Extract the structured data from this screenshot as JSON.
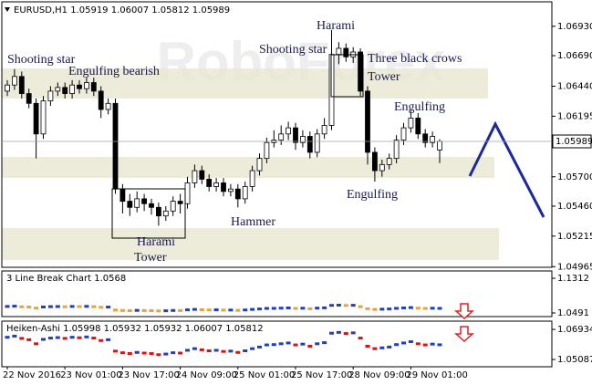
{
  "chart_data": {
    "type": "candlestick",
    "title": "EURUSD,H1 1.05919 1.06007 1.05812 1.05989",
    "watermark": "RoboForex",
    "categories": [
      "22 Nov 2016",
      null,
      null,
      null,
      null,
      null,
      null,
      null,
      "23 Nov 01:00",
      null,
      null,
      null,
      null,
      null,
      null,
      null,
      "23 Nov 17:00",
      null,
      null,
      null,
      null,
      null,
      null,
      null,
      "24 Nov 09:00",
      null,
      null,
      null,
      null,
      null,
      null,
      null,
      "25 Nov 01:00",
      null,
      null,
      null,
      null,
      null,
      null,
      null,
      "25 Nov 17:00",
      null,
      null,
      null,
      null,
      null,
      null,
      null,
      "28 Nov 09:00",
      null,
      null,
      null,
      null,
      null,
      null,
      null,
      "29 Nov 01:00",
      null,
      null,
      null,
      null
    ],
    "open": [
      1.064,
      1.0645,
      1.0652,
      1.0638,
      1.063,
      1.0605,
      1.0632,
      1.064,
      1.0643,
      1.0638,
      1.0645,
      1.0642,
      1.0647,
      1.064,
      1.0625,
      1.063,
      1.056,
      1.055,
      1.0545,
      1.0552,
      1.0548,
      1.0545,
      1.0538,
      1.0542,
      1.055,
      1.0548,
      1.0565,
      1.0575,
      1.0568,
      1.0562,
      1.0565,
      1.0558,
      1.056,
      1.0552,
      1.0562,
      1.0575,
      1.0585,
      1.0598,
      1.06,
      1.0605,
      1.061,
      1.0598,
      1.0603,
      1.059,
      1.0605,
      1.0612,
      1.067,
      1.0675,
      1.0668,
      1.0672,
      1.064,
      1.059,
      1.0575,
      1.058,
      1.0585,
      1.06,
      1.061,
      1.0618,
      1.0605,
      1.0598,
      1.05919
    ],
    "high": [
      1.0649,
      1.0658,
      1.0656,
      1.0642,
      1.0634,
      1.0636,
      1.0644,
      1.0647,
      1.0647,
      1.0649,
      1.0649,
      1.0651,
      1.0651,
      1.0644,
      1.0634,
      1.0634,
      1.0564,
      1.0556,
      1.0558,
      1.0556,
      1.0552,
      1.0549,
      1.0546,
      1.0554,
      1.0556,
      1.057,
      1.058,
      1.0579,
      1.0572,
      1.0569,
      1.0569,
      1.0564,
      1.0564,
      1.0566,
      1.0579,
      1.0589,
      1.0602,
      1.0608,
      1.0612,
      1.0615,
      1.0614,
      1.0608,
      1.0607,
      1.0609,
      1.0618,
      1.069,
      1.068,
      1.0679,
      1.0676,
      1.0675,
      1.0644,
      1.0594,
      1.0584,
      1.0589,
      1.0604,
      1.0614,
      1.0624,
      1.0622,
      1.0609,
      1.0607,
      1.06007
    ],
    "low": [
      1.0636,
      1.0641,
      1.0634,
      1.0626,
      1.0585,
      1.0601,
      1.0628,
      1.0636,
      1.0634,
      1.0634,
      1.0638,
      1.0638,
      1.0636,
      1.0618,
      1.0621,
      1.0556,
      1.054,
      1.0538,
      1.0541,
      1.0542,
      1.0539,
      1.053,
      1.0534,
      1.0538,
      1.054,
      1.0544,
      1.0561,
      1.0564,
      1.0558,
      1.0558,
      1.0554,
      1.0554,
      1.0545,
      1.0548,
      1.0558,
      1.0571,
      1.0581,
      1.0594,
      1.0596,
      1.06,
      1.0592,
      1.0594,
      1.0585,
      1.0586,
      1.0601,
      1.0608,
      1.0662,
      1.0664,
      1.0663,
      1.0636,
      1.058,
      1.0566,
      1.057,
      1.0576,
      1.0581,
      1.0596,
      1.0606,
      1.0601,
      1.0594,
      1.0594,
      1.05812
    ],
    "close": [
      1.0645,
      1.0652,
      1.0638,
      1.063,
      1.0605,
      1.0632,
      1.064,
      1.0643,
      1.0638,
      1.0645,
      1.0642,
      1.0647,
      1.064,
      1.0625,
      1.063,
      1.056,
      1.055,
      1.0545,
      1.0552,
      1.0548,
      1.0545,
      1.0538,
      1.0542,
      1.055,
      1.0548,
      1.0565,
      1.0575,
      1.0568,
      1.0562,
      1.0565,
      1.0558,
      1.056,
      1.0552,
      1.0562,
      1.0575,
      1.0585,
      1.0598,
      1.06,
      1.0605,
      1.061,
      1.0598,
      1.0603,
      1.059,
      1.0605,
      1.0612,
      1.067,
      1.0675,
      1.0668,
      1.0672,
      1.064,
      1.059,
      1.0575,
      1.058,
      1.0585,
      1.06,
      1.061,
      1.0618,
      1.0605,
      1.0598,
      1.0603,
      1.05989
    ],
    "up_color": "#ffffff",
    "down_color": "#000000",
    "wick_color": "#000000",
    "last_price": 1.05989,
    "ylim": [
      1.0496,
      1.0713
    ],
    "yticks": [
      {
        "value": 1.0693,
        "label": "1.06930"
      },
      {
        "value": 1.0669,
        "label": "1.06690"
      },
      {
        "value": 1.0644,
        "label": "1.06440"
      },
      1.06195,
      {
        "value": 1.057,
        "label": "1.05700"
      },
      {
        "value": 1.0546,
        "label": "1.05460"
      },
      1.05215,
      1.04965
    ],
    "annotations": [
      "Shooting star",
      "Engulfing bearish",
      "Harami",
      "Tower",
      "Hammer",
      "Shooting star",
      "Harami",
      "Three black crows",
      "Tower",
      "Engulfing",
      "Engulfing"
    ],
    "indicators": [
      {
        "title": "3 Line Break Chart 1.0568",
        "ylim": [
          1.0405,
          1.1485
        ],
        "yticks": [
          1.1312,
          1.0491
        ],
        "up_color": "#1f3fbf",
        "down_color": "#f0a030"
      },
      {
        "title": "Heiken-Ashi 1.05998 1.05932 1.05932 1.06007 1.05812",
        "ylim": [
          1.0464,
          1.0744
        ],
        "yticks": [
          1.06934,
          1.05087
        ],
        "up_color": "#1f3fbf",
        "down_color": "#e01010"
      }
    ]
  }
}
